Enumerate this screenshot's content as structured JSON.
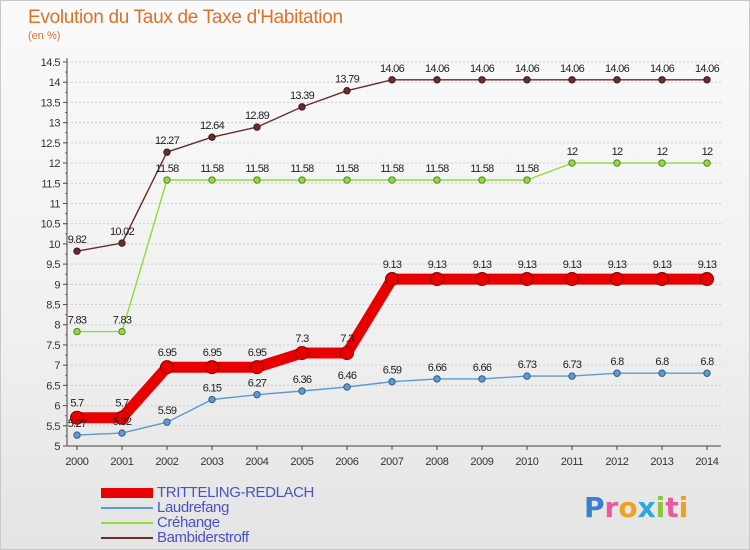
{
  "title": "Evolution du Taux de Taxe d'Habitation",
  "subtitle": "(en %)",
  "logo": {
    "text": "Proxiti",
    "colors": [
      "#3a7fd0",
      "#e85a9c",
      "#f0a020",
      "#2ea7e0",
      "#8cc63f",
      "#e85a9c",
      "#f0a020"
    ]
  },
  "chart_data": {
    "type": "line",
    "x": [
      2000,
      2001,
      2002,
      2003,
      2004,
      2005,
      2006,
      2007,
      2008,
      2009,
      2010,
      2011,
      2012,
      2013,
      2014
    ],
    "x_tick_labels": [
      "2000",
      "2001",
      "2002",
      "2003",
      "2004",
      "2005",
      "2006",
      "2007",
      "2008",
      "2009",
      "2010",
      "2011",
      "2012",
      "2013",
      "2014"
    ],
    "ylim": [
      5,
      14.5
    ],
    "y_ticks": [
      5,
      5.5,
      6,
      6.5,
      7,
      7.5,
      8,
      8.5,
      9,
      9.5,
      10,
      10.5,
      11,
      11.5,
      12,
      12.5,
      13,
      13.5,
      14,
      14.5
    ],
    "y_tick_labels": [
      "5",
      "5.5",
      "6",
      "6.5",
      "7",
      "7.5",
      "8",
      "8.5",
      "9",
      "9.5",
      "10",
      "10.5",
      "11",
      "11.5",
      "12",
      "12.5",
      "13",
      "13.5",
      "14",
      "14.5"
    ],
    "grid": "horizontal, dashed",
    "legend_position": "bottom-left",
    "series": [
      {
        "name": "TRITTELING-REDLACH",
        "color": "#e80000",
        "style": "thick",
        "values": [
          5.7,
          5.7,
          6.95,
          6.95,
          6.95,
          7.3,
          7.3,
          9.13,
          9.13,
          9.13,
          9.13,
          9.13,
          9.13,
          9.13,
          9.13
        ],
        "labels": [
          "5.7",
          "5.7",
          "6.95",
          "6.95",
          "6.95",
          "7.3",
          "7.3",
          "9.13",
          "9.13",
          "9.13",
          "9.13",
          "9.13",
          "9.13",
          "9.13",
          "9.13"
        ]
      },
      {
        "name": "Laudrefang",
        "color": "#5b9bd5",
        "style": "thin",
        "values": [
          5.27,
          5.32,
          5.59,
          6.15,
          6.27,
          6.36,
          6.46,
          6.59,
          6.66,
          6.66,
          6.73,
          6.73,
          6.8,
          6.8,
          6.8
        ],
        "labels": [
          "5.27",
          "5.32",
          "5.59",
          "6.15",
          "6.27",
          "6.36",
          "6.46",
          "6.59",
          "6.66",
          "6.66",
          "6.73",
          "6.73",
          "6.8",
          "6.8",
          "6.8"
        ]
      },
      {
        "name": "Créhange",
        "color": "#8fdc3c",
        "style": "thin",
        "values": [
          7.83,
          7.83,
          11.58,
          11.58,
          11.58,
          11.58,
          11.58,
          11.58,
          11.58,
          11.58,
          11.58,
          12,
          12,
          12,
          12
        ],
        "labels": [
          "7.83",
          "7.83",
          "11.58",
          "11.58",
          "11.58",
          "11.58",
          "11.58",
          "11.58",
          "11.58",
          "11.58",
          "11.58",
          "12",
          "12",
          "12",
          "12"
        ]
      },
      {
        "name": "Bambiderstroff",
        "color": "#6b2c2c",
        "style": "thin",
        "values": [
          9.82,
          10.02,
          12.27,
          12.64,
          12.89,
          13.39,
          13.79,
          14.06,
          14.06,
          14.06,
          14.06,
          14.06,
          14.06,
          14.06,
          14.06
        ],
        "labels": [
          "9.82",
          "10.02",
          "12.27",
          "12.64",
          "12.89",
          "13.39",
          "13.79",
          "14.06",
          "14.06",
          "14.06",
          "14.06",
          "14.06",
          "14.06",
          "14.06",
          "14.06"
        ]
      }
    ]
  }
}
